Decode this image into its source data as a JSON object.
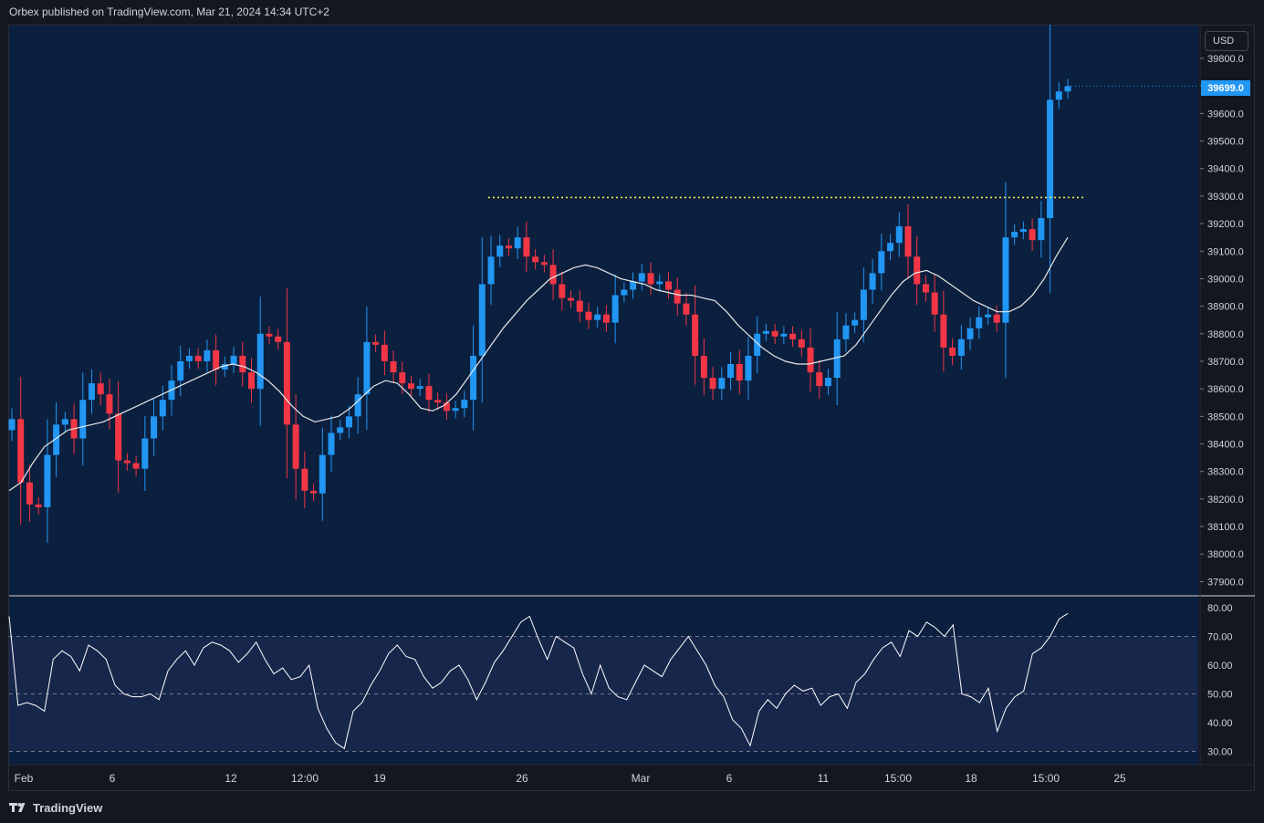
{
  "header": {
    "text": "Orbex published on TradingView.com, Mar 21, 2024 14:34 UTC+2"
  },
  "footer": {
    "brand": "TradingView"
  },
  "price_axis": {
    "currency_label": "USD",
    "last_price_label": "39699.0",
    "ticks": [
      "39800.0",
      "39700.0",
      "39600.0",
      "39500.0",
      "39400.0",
      "39300.0",
      "39200.0",
      "39100.0",
      "39000.0",
      "38900.0",
      "38800.0",
      "38700.0",
      "38600.0",
      "38500.0",
      "38400.0",
      "38300.0",
      "38200.0",
      "38100.0",
      "38000.0",
      "37900.0"
    ]
  },
  "rsi_axis": {
    "ticks": [
      "80.00",
      "70.00",
      "60.00",
      "50.00",
      "40.00",
      "30.00"
    ]
  },
  "time_axis": {
    "labels": [
      "Feb",
      "6",
      "12",
      "12:00",
      "19",
      "26",
      "Mar",
      "6",
      "11",
      "15:00",
      "18",
      "15:00",
      "25"
    ]
  },
  "colors": {
    "background": "#131722",
    "pane": "#0b1f3e",
    "rsi_band": "#17264b",
    "up": "#2196f3",
    "down": "#f23645",
    "ma": "#e8e8e8",
    "resistance": "#f5e94a",
    "last_price": "#2196f3"
  },
  "chart_data": {
    "type": "candlestick",
    "ylim": [
      37850,
      39880
    ],
    "resistance_level": 39295,
    "last_price": 39699,
    "x_ticks": [
      "Feb",
      "6",
      "12",
      "12:00",
      "19",
      "26",
      "Mar",
      "6",
      "11",
      "15:00",
      "18",
      "15:00",
      "25"
    ],
    "close_series": [
      38490,
      38260,
      38180,
      38170,
      38360,
      38470,
      38490,
      38420,
      38560,
      38620,
      38580,
      38510,
      38340,
      38330,
      38310,
      38420,
      38500,
      38560,
      38630,
      38700,
      38720,
      38700,
      38740,
      38670,
      38690,
      38720,
      38660,
      38600,
      38800,
      38790,
      38770,
      38470,
      38310,
      38230,
      38220,
      38360,
      38440,
      38460,
      38500,
      38580,
      38770,
      38760,
      38700,
      38660,
      38620,
      38600,
      38610,
      38560,
      38550,
      38520,
      38530,
      38560,
      38720,
      38980,
      39080,
      39120,
      39110,
      39150,
      39080,
      39060,
      39050,
      38980,
      38930,
      38920,
      38880,
      38850,
      38870,
      38840,
      38940,
      38960,
      38990,
      39020,
      38980,
      38990,
      38960,
      38910,
      38870,
      38720,
      38640,
      38600,
      38640,
      38690,
      38630,
      38720,
      38800,
      38810,
      38790,
      38800,
      38780,
      38750,
      38660,
      38610,
      38640,
      38780,
      38830,
      38850,
      38960,
      39020,
      39100,
      39130,
      39190,
      39080,
      38980,
      38950,
      38870,
      38750,
      38720,
      38780,
      38820,
      38860,
      38870,
      38840,
      39150,
      39170,
      39180,
      39140,
      39220,
      39650,
      39680,
      39699
    ],
    "ma_series": [
      38230,
      38260,
      38330,
      38390,
      38420,
      38450,
      38460,
      38470,
      38480,
      38500,
      38520,
      38540,
      38560,
      38580,
      38600,
      38620,
      38640,
      38660,
      38680,
      38690,
      38680,
      38660,
      38630,
      38590,
      38540,
      38500,
      38480,
      38490,
      38500,
      38530,
      38570,
      38610,
      38630,
      38620,
      38580,
      38530,
      38520,
      38540,
      38580,
      38640,
      38700,
      38760,
      38820,
      38870,
      38920,
      38960,
      39000,
      39020,
      39040,
      39050,
      39040,
      39020,
      39000,
      38990,
      38980,
      38960,
      38950,
      38940,
      38940,
      38930,
      38920,
      38880,
      38830,
      38790,
      38750,
      38720,
      38700,
      38690,
      38690,
      38700,
      38710,
      38720,
      38760,
      38820,
      38880,
      38940,
      38990,
      39020,
      39030,
      39010,
      38980,
      38950,
      38920,
      38900,
      38880,
      38880,
      38900,
      38940,
      39000,
      39080,
      39150
    ],
    "rsi_series": [
      77,
      46,
      47,
      46,
      44,
      62,
      65,
      63,
      58,
      67,
      65,
      62,
      53,
      50,
      49,
      49,
      50,
      48,
      58,
      62,
      65,
      60,
      66,
      68,
      67,
      65,
      61,
      64,
      68,
      62,
      57,
      59,
      55,
      56,
      60,
      45,
      38,
      33,
      31,
      44,
      47,
      53,
      58,
      64,
      67,
      63,
      62,
      56,
      52,
      54,
      58,
      60,
      55,
      48,
      54,
      61,
      65,
      70,
      75,
      77,
      69,
      62,
      70,
      68,
      66,
      57,
      50,
      60,
      52,
      49,
      48,
      54,
      60,
      58,
      56,
      62,
      66,
      70,
      65,
      60,
      53,
      49,
      41,
      38,
      32,
      44,
      48,
      45,
      50,
      53,
      51,
      52,
      46,
      49,
      50,
      45,
      54,
      57,
      62,
      66,
      68,
      63,
      72,
      70,
      75,
      73,
      70,
      74,
      50,
      49,
      47,
      52,
      37,
      45,
      49,
      51,
      64,
      66,
      70,
      76,
      78
    ],
    "rsi_levels": [
      70,
      50,
      30
    ]
  }
}
